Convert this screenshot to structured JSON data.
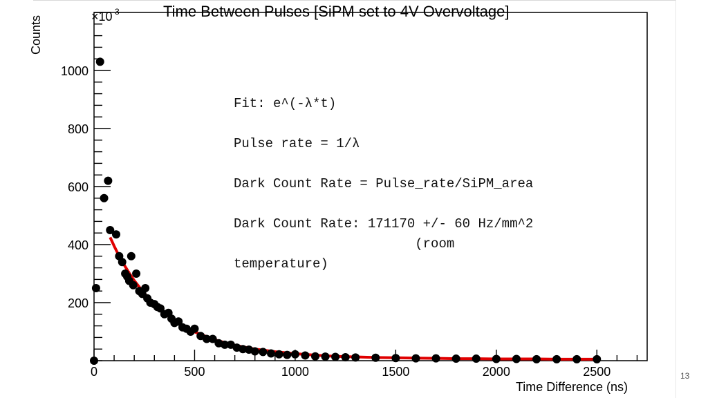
{
  "slide": {
    "title": "Time Between Pulses [SiPM set to 4V Overvoltage]",
    "page_number": "13"
  },
  "annotation": {
    "lines": [
      "Fit: e^(-λ*t)",
      "",
      "Pulse rate = 1/λ",
      "",
      "Dark Count Rate = Pulse_rate/SiPM_area",
      "",
      "Dark Count Rate: 171170 +/- 60 Hz/mm^2",
      "                       (room",
      "temperature)"
    ]
  },
  "chart_data": {
    "type": "scatter",
    "title": "",
    "xlabel": "Time Difference (ns)",
    "ylabel": "Counts",
    "y_multiplier_label": "×10",
    "y_multiplier_exponent": "3",
    "xlim": [
      0,
      2750
    ],
    "ylim": [
      0,
      1200
    ],
    "x_ticks": [
      0,
      500,
      1000,
      1500,
      2000,
      2500
    ],
    "x_tick_labels": [
      "0",
      "500",
      "1000",
      "1500",
      "2000",
      "2500"
    ],
    "y_ticks": [
      200,
      400,
      600,
      800,
      1000
    ],
    "y_tick_labels": [
      "200",
      "400",
      "600",
      "800",
      "1000"
    ],
    "grid": false,
    "colors": {
      "points": "#000000",
      "fit": "#e00000",
      "frame": "#000000"
    },
    "series": [
      {
        "type": "scatter",
        "x": [
          0,
          10,
          30,
          50,
          70,
          80,
          110,
          125,
          140,
          155,
          165,
          175,
          185,
          195,
          210,
          225,
          240,
          255,
          265,
          280,
          300,
          315,
          330,
          350,
          370,
          385,
          400,
          420,
          440,
          460,
          480,
          500,
          530,
          560,
          590,
          620,
          650,
          680,
          710,
          740,
          770,
          800,
          840,
          880,
          920,
          960,
          1000,
          1050,
          1100,
          1150,
          1200,
          1250,
          1300,
          1400,
          1500,
          1600,
          1700,
          1800,
          1900,
          2000,
          2100,
          2200,
          2300,
          2400,
          2500
        ],
        "y": [
          0,
          250,
          1030,
          560,
          620,
          450,
          435,
          360,
          340,
          300,
          290,
          275,
          360,
          260,
          300,
          240,
          230,
          250,
          215,
          200,
          195,
          185,
          180,
          160,
          165,
          145,
          130,
          135,
          115,
          110,
          100,
          110,
          85,
          75,
          75,
          60,
          55,
          55,
          45,
          40,
          38,
          32,
          30,
          25,
          22,
          20,
          22,
          18,
          15,
          14,
          13,
          12,
          11,
          10,
          9,
          8,
          8,
          7,
          7,
          6,
          6,
          5,
          5,
          5,
          5
        ]
      },
      {
        "type": "line",
        "name": "",
        "x": [
          80,
          100,
          125,
          150,
          175,
          200,
          250,
          300,
          350,
          400,
          450,
          500,
          600,
          700,
          800,
          900,
          1000,
          1100,
          1200,
          1300,
          1400,
          1500,
          1600,
          1700,
          1800,
          1900,
          2000,
          2100,
          2200,
          2300,
          2400,
          2500
        ],
        "y": [
          425,
          395,
          360,
          330,
          302,
          276,
          232,
          195,
          164,
          138,
          117,
          99,
          72,
          53,
          40,
          31,
          24,
          19,
          15,
          13,
          11,
          10,
          9,
          8,
          7,
          7,
          6,
          6,
          6,
          5,
          5,
          5
        ]
      }
    ]
  }
}
